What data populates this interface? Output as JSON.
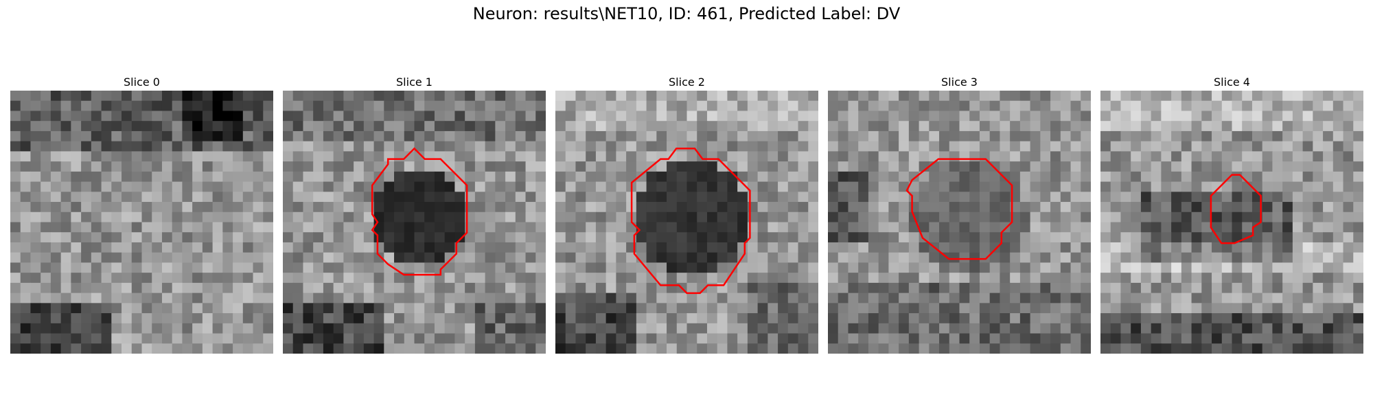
{
  "figure": {
    "title": "Neuron: results\\NET10, ID: 461, Predicted Label: DV"
  },
  "panels": [
    {
      "title": "Slice 0"
    },
    {
      "title": "Slice 1"
    },
    {
      "title": "Slice 2"
    },
    {
      "title": "Slice 3"
    },
    {
      "title": "Slice 4"
    }
  ],
  "colors": {
    "contour": "#ff0000"
  }
}
